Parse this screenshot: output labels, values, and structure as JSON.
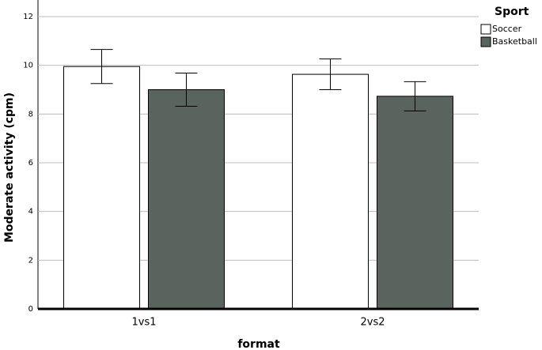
{
  "chart_data": {
    "type": "bar",
    "x_label": "format",
    "y_label": "Moderate activity (cpm)",
    "legend_title": "Sport",
    "categories": [
      "1vs1",
      "2vs2"
    ],
    "series": [
      {
        "name": "Soccer",
        "color": "#ffffff",
        "values": [
          9.95,
          9.63
        ],
        "errors": [
          0.7,
          0.63
        ]
      },
      {
        "name": "Basketball",
        "color": "#5a645e",
        "values": [
          9.0,
          8.73
        ],
        "errors": [
          0.68,
          0.6
        ]
      }
    ],
    "ylim": [
      0,
      12
    ],
    "yticks": [
      0,
      2,
      4,
      6,
      8,
      10,
      12
    ],
    "grid": true,
    "legend": "top-right"
  }
}
